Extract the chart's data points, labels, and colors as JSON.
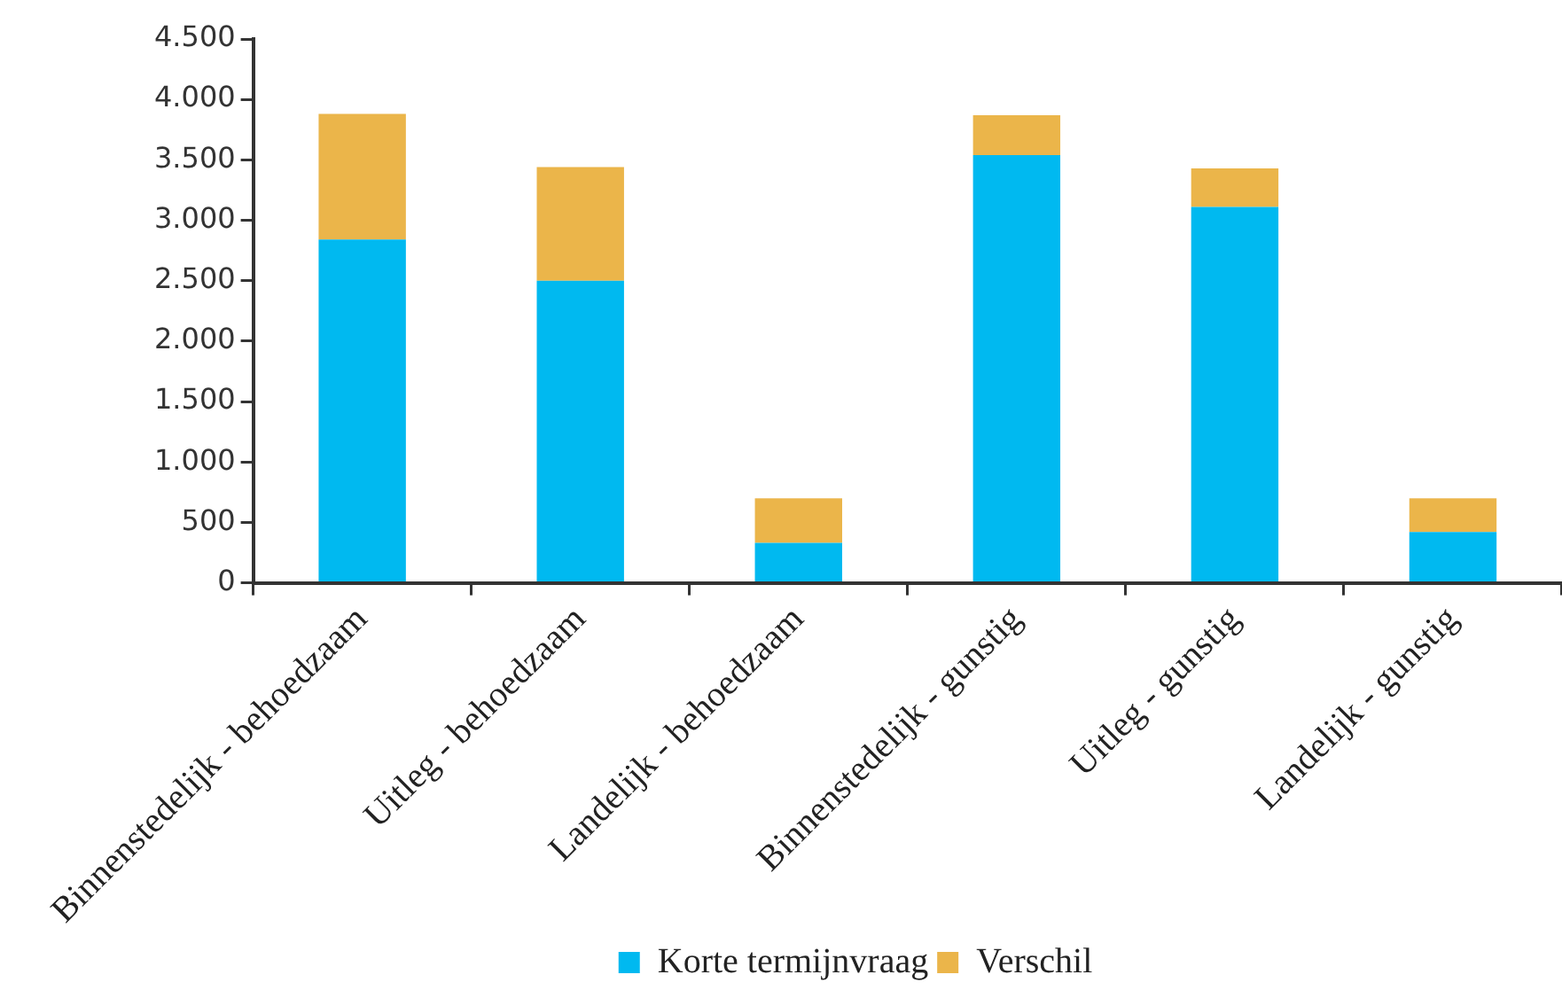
{
  "chart_data": {
    "type": "bar",
    "stacked": true,
    "legend": "bottom",
    "grid": false,
    "categories": [
      "Binnenstedelijk - behoedzaam",
      "Uitleg - behoedzaam",
      "Landelijk - behoedzaam",
      "Binnenstedelijk - gunstig",
      "Uitleg - gunstig",
      "Landelijk - gunstig"
    ],
    "series": [
      {
        "name": "Korte termijnvraag",
        "color": "#00b9f0",
        "values": [
          2840,
          2500,
          330,
          3540,
          3110,
          420
        ]
      },
      {
        "name": "Verschil",
        "color": "#ebb54a",
        "values": [
          1040,
          940,
          370,
          330,
          320,
          280
        ]
      }
    ],
    "ylim": [
      0,
      4500
    ],
    "yticks": [
      0,
      500,
      {
        "value": 1000,
        "label": "1.000"
      },
      {
        "value": 1500,
        "label": "1.500"
      },
      {
        "value": 2000,
        "label": "2.000"
      },
      {
        "value": 2500,
        "label": "2.500"
      },
      {
        "value": 3000,
        "label": "3.000"
      },
      {
        "value": 3500,
        "label": "3.500"
      },
      {
        "value": 4000,
        "label": "4.000"
      },
      {
        "value": 4500,
        "label": "4.500"
      }
    ]
  }
}
